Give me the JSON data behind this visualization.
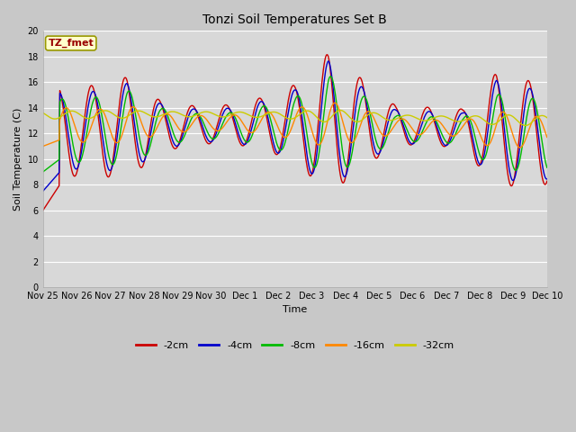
{
  "title": "Tonzi Soil Temperatures Set B",
  "xlabel": "Time",
  "ylabel": "Soil Temperature (C)",
  "ylim": [
    0,
    20
  ],
  "yticks": [
    0,
    2,
    4,
    6,
    8,
    10,
    12,
    14,
    16,
    18,
    20
  ],
  "x_labels": [
    "Nov 25",
    "Nov 26",
    "Nov 27",
    "Nov 28",
    "Nov 29",
    "Nov 30",
    "Dec 1",
    "Dec 2",
    "Dec 3",
    "Dec 4",
    "Dec 5",
    "Dec 6",
    "Dec 7",
    "Dec 8",
    "Dec 9",
    "Dec 10"
  ],
  "series_colors": [
    "#cc0000",
    "#0000cc",
    "#00bb00",
    "#ff8800",
    "#cccc00"
  ],
  "series_labels": [
    "-2cm",
    "-4cm",
    "-8cm",
    "-16cm",
    "-32cm"
  ],
  "fig_bg_color": "#c8c8c8",
  "plot_bg_color": "#d8d8d8",
  "grid_color": "#ffffff",
  "annotation_text": "TZ_fmet",
  "annotation_bg": "#ffffcc",
  "annotation_fg": "#990000",
  "annotation_border": "#999900"
}
